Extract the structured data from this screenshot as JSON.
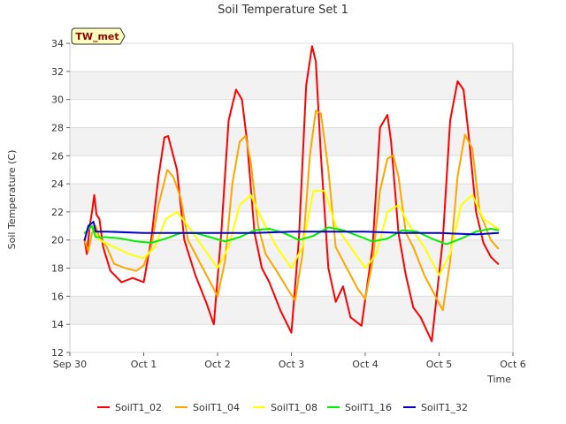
{
  "chart_data": {
    "type": "line",
    "title": "Soil Temperature Set 1",
    "xlabel": "Time",
    "ylabel": "Soil Temperature (C)",
    "badge": "TW_met",
    "ylim": [
      12,
      34
    ],
    "yticks": [
      12,
      14,
      16,
      18,
      20,
      22,
      24,
      26,
      28,
      30,
      32,
      34
    ],
    "xlim": [
      0,
      6
    ],
    "xticks": [
      {
        "x": 0,
        "label": "Sep 30"
      },
      {
        "x": 1,
        "label": "Oct 1"
      },
      {
        "x": 2,
        "label": "Oct 2"
      },
      {
        "x": 3,
        "label": "Oct 3"
      },
      {
        "x": 4,
        "label": "Oct 4"
      },
      {
        "x": 5,
        "label": "Oct 5"
      },
      {
        "x": 6,
        "label": "Oct 6"
      }
    ],
    "grid": true,
    "legend_position": "bottom",
    "series": [
      {
        "name": "SoilT1_02",
        "color": "#ff0000",
        "x": [
          0.2,
          0.23,
          0.27,
          0.3,
          0.33,
          0.36,
          0.4,
          0.45,
          0.55,
          0.7,
          0.85,
          1.0,
          1.1,
          1.2,
          1.28,
          1.33,
          1.45,
          1.55,
          1.7,
          1.85,
          1.95,
          2.05,
          2.15,
          2.25,
          2.33,
          2.4,
          2.5,
          2.6,
          2.7,
          2.85,
          3.0,
          3.1,
          3.2,
          3.28,
          3.33,
          3.4,
          3.5,
          3.6,
          3.7,
          3.8,
          3.95,
          4.1,
          4.2,
          4.3,
          4.35,
          4.45,
          4.55,
          4.65,
          4.75,
          4.9,
          5.05,
          5.15,
          5.25,
          5.33,
          5.4,
          5.5,
          5.6,
          5.7,
          5.8
        ],
        "values": [
          20.0,
          19.0,
          21.0,
          22.0,
          23.2,
          21.8,
          21.5,
          19.5,
          17.8,
          17.0,
          17.3,
          17.0,
          20.0,
          24.5,
          27.3,
          27.4,
          25.0,
          20.0,
          17.5,
          15.5,
          14.0,
          20.5,
          28.5,
          30.7,
          30.0,
          27.0,
          20.5,
          18.0,
          17.0,
          15.0,
          13.4,
          20.0,
          31.0,
          33.8,
          32.7,
          26.0,
          18.0,
          15.6,
          16.7,
          14.5,
          13.9,
          19.5,
          28.0,
          28.9,
          27.0,
          20.5,
          17.5,
          15.2,
          14.5,
          12.8,
          20.0,
          28.5,
          31.3,
          30.7,
          27.5,
          22.0,
          19.8,
          18.8,
          18.3
        ]
      },
      {
        "name": "SoilT1_04",
        "color": "#ffa500",
        "x": [
          0.2,
          0.25,
          0.3,
          0.35,
          0.4,
          0.5,
          0.6,
          0.75,
          0.9,
          1.0,
          1.1,
          1.2,
          1.32,
          1.4,
          1.5,
          1.6,
          1.75,
          1.9,
          2.0,
          2.1,
          2.2,
          2.3,
          2.38,
          2.45,
          2.55,
          2.65,
          2.8,
          2.95,
          3.05,
          3.15,
          3.25,
          3.33,
          3.4,
          3.5,
          3.6,
          3.75,
          3.9,
          4.0,
          4.1,
          4.2,
          4.3,
          4.38,
          4.45,
          4.55,
          4.65,
          4.8,
          4.95,
          5.05,
          5.15,
          5.25,
          5.35,
          5.45,
          5.55,
          5.7,
          5.8
        ],
        "values": [
          20.0,
          19.2,
          20.5,
          21.0,
          20.2,
          19.5,
          18.3,
          18.0,
          17.8,
          18.2,
          19.5,
          22.5,
          25.0,
          24.5,
          23.0,
          20.0,
          18.5,
          17.0,
          16.0,
          18.5,
          24.0,
          27.0,
          27.4,
          25.5,
          21.0,
          19.0,
          17.8,
          16.5,
          15.7,
          19.0,
          26.0,
          29.2,
          29.0,
          25.0,
          19.5,
          18.0,
          16.5,
          15.8,
          18.5,
          23.5,
          25.8,
          26.0,
          24.5,
          20.5,
          19.5,
          17.5,
          16.0,
          15.0,
          18.5,
          24.5,
          27.5,
          26.5,
          22.0,
          20.0,
          19.4
        ]
      },
      {
        "name": "SoilT1_08",
        "color": "#ffff00",
        "x": [
          0.2,
          0.3,
          0.4,
          0.6,
          0.8,
          1.0,
          1.15,
          1.3,
          1.45,
          1.6,
          1.8,
          2.0,
          2.15,
          2.3,
          2.45,
          2.6,
          2.8,
          3.0,
          3.15,
          3.3,
          3.45,
          3.6,
          3.8,
          4.0,
          4.15,
          4.3,
          4.45,
          4.6,
          4.8,
          5.0,
          5.15,
          5.3,
          5.45,
          5.6,
          5.8
        ],
        "values": [
          20.5,
          21.0,
          20.0,
          19.5,
          19.0,
          18.7,
          19.5,
          21.5,
          22.0,
          21.0,
          19.5,
          18.0,
          19.5,
          22.5,
          23.2,
          21.5,
          19.5,
          18.0,
          19.5,
          23.5,
          23.5,
          21.0,
          19.5,
          18.0,
          19.0,
          22.0,
          22.5,
          21.0,
          19.5,
          17.5,
          19.0,
          22.5,
          23.2,
          21.5,
          20.8
        ]
      },
      {
        "name": "SoilT1_16",
        "color": "#00ee00",
        "x": [
          0.2,
          0.3,
          0.35,
          0.5,
          0.7,
          0.9,
          1.1,
          1.3,
          1.5,
          1.7,
          1.9,
          2.1,
          2.3,
          2.5,
          2.7,
          2.9,
          3.1,
          3.3,
          3.5,
          3.7,
          3.9,
          4.1,
          4.3,
          4.5,
          4.7,
          4.9,
          5.1,
          5.3,
          5.5,
          5.7,
          5.8
        ],
        "values": [
          20.5,
          21.0,
          20.2,
          20.2,
          20.1,
          19.9,
          19.8,
          20.1,
          20.5,
          20.5,
          20.2,
          19.9,
          20.2,
          20.7,
          20.8,
          20.5,
          20.0,
          20.3,
          20.9,
          20.7,
          20.3,
          19.9,
          20.1,
          20.7,
          20.6,
          20.1,
          19.7,
          20.1,
          20.6,
          20.8,
          20.7
        ]
      },
      {
        "name": "SoilT1_32",
        "color": "#0000cc",
        "x": [
          0.2,
          0.25,
          0.32,
          0.35,
          0.5,
          1.0,
          2.0,
          2.5,
          3.0,
          3.5,
          4.0,
          4.5,
          5.0,
          5.5,
          5.8
        ],
        "values": [
          20.0,
          21.0,
          21.3,
          20.6,
          20.6,
          20.5,
          20.5,
          20.5,
          20.6,
          20.6,
          20.6,
          20.5,
          20.5,
          20.4,
          20.5
        ]
      }
    ]
  }
}
